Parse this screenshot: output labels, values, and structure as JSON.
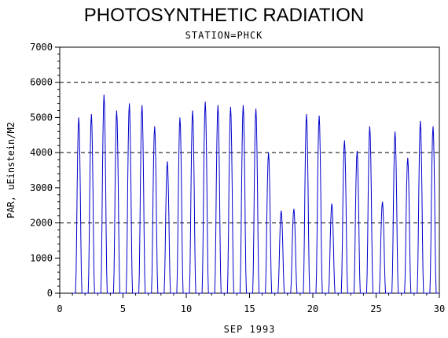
{
  "chart_data": {
    "type": "line",
    "title": "PHOTOSYNTHETIC RADIATION",
    "subtitle": "STATION=PHCK",
    "xlabel": "SEP 1993",
    "ylabel": "PAR, uEinstein/M2",
    "xlim": [
      0,
      30
    ],
    "ylim": [
      0,
      7000
    ],
    "x_ticks": [
      0,
      5,
      10,
      15,
      20,
      25,
      30
    ],
    "y_ticks": [
      0,
      1000,
      2000,
      3000,
      4000,
      5000,
      6000,
      7000
    ],
    "reference_lines_y": [
      2000,
      4000,
      6000
    ],
    "grid": false,
    "series_color": "#0000cc",
    "daily_peaks": [
      {
        "day": 1,
        "peak": 5000
      },
      {
        "day": 2,
        "peak": 5100
      },
      {
        "day": 3,
        "peak": 5650
      },
      {
        "day": 4,
        "peak": 5200
      },
      {
        "day": 5,
        "peak": 5400
      },
      {
        "day": 6,
        "peak": 5350
      },
      {
        "day": 7,
        "peak": 4750
      },
      {
        "day": 8,
        "peak": 3750
      },
      {
        "day": 9,
        "peak": 5000
      },
      {
        "day": 10,
        "peak": 5200
      },
      {
        "day": 11,
        "peak": 5450
      },
      {
        "day": 12,
        "peak": 5350
      },
      {
        "day": 13,
        "peak": 5300
      },
      {
        "day": 14,
        "peak": 5350
      },
      {
        "day": 15,
        "peak": 5250
      },
      {
        "day": 16,
        "peak": 4000
      },
      {
        "day": 17,
        "peak": 2350
      },
      {
        "day": 18,
        "peak": 2400
      },
      {
        "day": 19,
        "peak": 5100
      },
      {
        "day": 20,
        "peak": 5050
      },
      {
        "day": 21,
        "peak": 2550
      },
      {
        "day": 22,
        "peak": 4350
      },
      {
        "day": 23,
        "peak": 4050
      },
      {
        "day": 24,
        "peak": 4750
      },
      {
        "day": 25,
        "peak": 2600
      },
      {
        "day": 26,
        "peak": 4600
      },
      {
        "day": 27,
        "peak": 3850
      },
      {
        "day": 28,
        "peak": 4900
      },
      {
        "day": 29,
        "peak": 4750
      }
    ]
  }
}
